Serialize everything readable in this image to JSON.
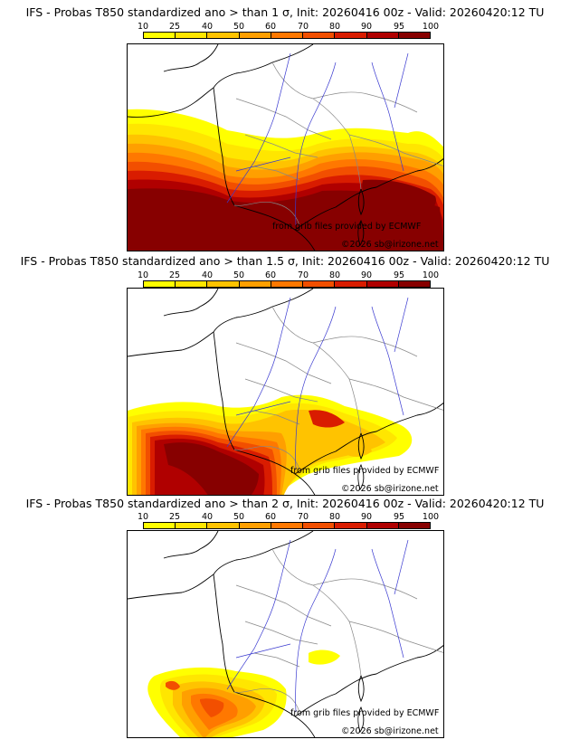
{
  "colorbar": {
    "ticks": [
      "10",
      "25",
      "40",
      "50",
      "60",
      "70",
      "80",
      "90",
      "95",
      "100"
    ],
    "colors": [
      "#ffff00",
      "#ffe600",
      "#ffc300",
      "#ff9f00",
      "#ff7800",
      "#f24f00",
      "#d91c00",
      "#b00000",
      "#870000"
    ]
  },
  "panels": [
    {
      "title": "IFS - Probas T850  standardized ano > than 1 σ, Init: 20260416 00z - Valid: 20260420:12 TU",
      "credit1": "from grib files provided by ECMWF",
      "credit2": "©2026 sb@irizone.net"
    },
    {
      "title": "IFS - Probas T850  standardized ano > than 1.5 σ, Init: 20260416 00z - Valid: 20260420:12 TU",
      "credit1": "from grib files provided by ECMWF",
      "credit2": "©2026 sb@irizone.net"
    },
    {
      "title": "IFS - Probas T850  standardized ano > than 2 σ, Init: 20260416 00z - Valid: 20260420:12 TU",
      "credit1": "from grib files provided by ECMWF",
      "credit2": "©2026 sb@irizone.net"
    }
  ]
}
